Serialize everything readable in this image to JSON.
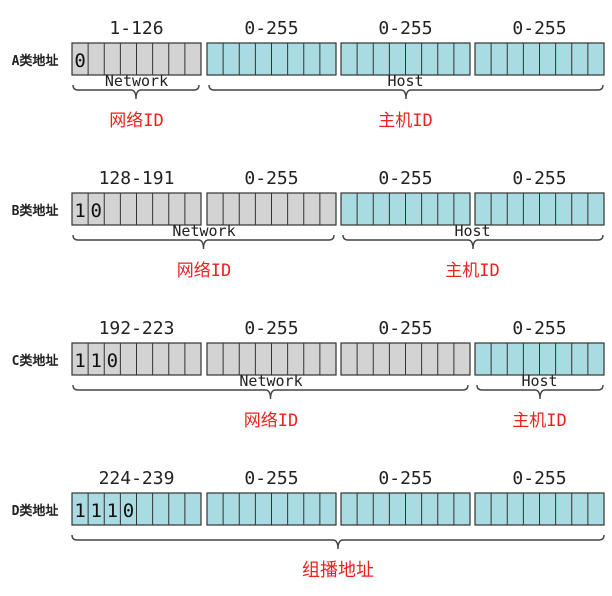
{
  "classes": [
    {
      "label": "A类地址",
      "ranges": [
        "1-126",
        "0-255",
        "0-255",
        "0-255"
      ],
      "leading_bits": [
        "0"
      ],
      "network_bytes": 1,
      "network_caption": "Network",
      "host_caption": "Host",
      "network_id_label": "网络ID",
      "host_id_label": "主机ID"
    },
    {
      "label": "B类地址",
      "ranges": [
        "128-191",
        "0-255",
        "0-255",
        "0-255"
      ],
      "leading_bits": [
        "1",
        "0"
      ],
      "network_bytes": 2,
      "network_caption": "Network",
      "host_caption": "Host",
      "network_id_label": "网络ID",
      "host_id_label": "主机ID"
    },
    {
      "label": "C类地址",
      "ranges": [
        "192-223",
        "0-255",
        "0-255",
        "0-255"
      ],
      "leading_bits": [
        "1",
        "1",
        "0"
      ],
      "network_bytes": 3,
      "network_caption": "Network",
      "host_caption": "Host",
      "network_id_label": "网络ID",
      "host_id_label": "主机ID"
    },
    {
      "label": "D类地址",
      "ranges": [
        "224-239",
        "0-255",
        "0-255",
        "0-255"
      ],
      "leading_bits": [
        "1",
        "1",
        "1",
        "0"
      ],
      "network_bytes": 0,
      "multicast_label": "组播地址"
    }
  ],
  "colors": {
    "network_fill": "#d3d3d3",
    "host_fill": "#a8dce2",
    "label_red": "#f01f1f",
    "text": "#222222"
  }
}
